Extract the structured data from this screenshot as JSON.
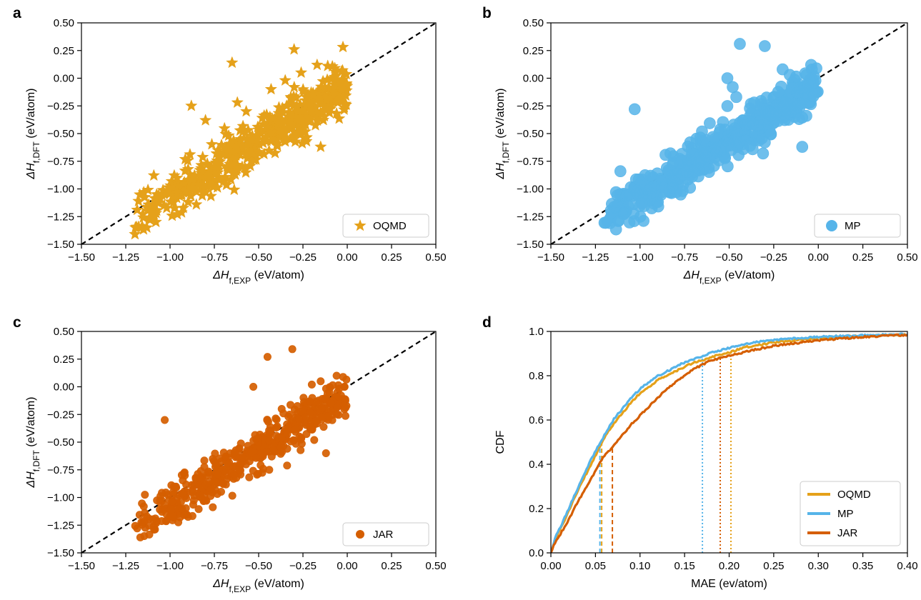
{
  "colors": {
    "OQMD": "#E5A11A",
    "MP": "#56B4E9",
    "JAR": "#D55E00"
  },
  "chart_data": [
    {
      "panel": "a",
      "type": "scatter",
      "marker": "star",
      "xlabel": {
        "pre": "ΔH",
        "sub": "f,EXP",
        "post": " (eV/atom)"
      },
      "ylabel": {
        "pre": "ΔH",
        "sub": "f,DFT",
        "post": " (eV/atom)"
      },
      "xlim": [
        -1.5,
        0.5
      ],
      "ylim": [
        -1.5,
        0.5
      ],
      "ticks": [
        "−1.50",
        "−1.25",
        "−1.00",
        "−0.75",
        "−0.50",
        "−0.25",
        "0.00",
        "0.25",
        "0.50"
      ],
      "tick_values": [
        -1.5,
        -1.25,
        -1.0,
        -0.75,
        -0.5,
        -0.25,
        0.0,
        0.25,
        0.5
      ],
      "parity_line": true,
      "legend": {
        "label": "OQMD",
        "position": "lower-right"
      },
      "series": [
        {
          "name": "OQMD",
          "color_key": "OQMD",
          "outliers": [
            [
              -0.65,
              0.14
            ],
            [
              -0.3,
              0.26
            ],
            [
              -1.09,
              -1.23
            ],
            [
              -0.15,
              -0.62
            ],
            [
              -0.57,
              -0.3
            ],
            [
              -0.8,
              -0.38
            ],
            [
              -0.88,
              -0.25
            ],
            [
              -0.43,
              -0.1
            ],
            [
              -0.35,
              -0.02
            ],
            [
              -0.17,
              0.12
            ],
            [
              -0.62,
              -0.22
            ],
            [
              -0.23,
              -0.57
            ],
            [
              -0.26,
              0.05
            ],
            [
              -0.19,
              -0.15
            ],
            [
              -0.11,
              0.11
            ],
            [
              -0.07,
              0.09
            ]
          ],
          "band": {
            "x_min": -1.2,
            "x_max": 0.0,
            "intercept": -0.07,
            "spread": 0.1,
            "count": 500
          }
        }
      ]
    },
    {
      "panel": "b",
      "type": "scatter",
      "marker": "circle",
      "xlabel": {
        "pre": "ΔH",
        "sub": "f,EXP",
        "post": " (eV/atom)"
      },
      "ylabel": {
        "pre": "ΔH",
        "sub": "f,DFT",
        "post": " (eV/atom)"
      },
      "xlim": [
        -1.5,
        0.5
      ],
      "ylim": [
        -1.5,
        0.5
      ],
      "ticks": [
        "−1.50",
        "−1.25",
        "−1.00",
        "−0.75",
        "−0.50",
        "−0.25",
        "0.00",
        "0.25",
        "0.50"
      ],
      "tick_values": [
        -1.5,
        -1.25,
        -1.0,
        -0.75,
        -0.5,
        -0.25,
        0.0,
        0.25,
        0.5
      ],
      "parity_line": true,
      "legend": {
        "label": "MP",
        "position": "lower-right"
      },
      "series": [
        {
          "name": "MP",
          "color_key": "MP",
          "outliers": [
            [
              -0.44,
              0.31
            ],
            [
              -0.3,
              0.29
            ],
            [
              -1.03,
              -0.28
            ],
            [
              -0.09,
              -0.62
            ],
            [
              -0.04,
              0.12
            ],
            [
              -0.51,
              0.0
            ],
            [
              -0.2,
              0.08
            ],
            [
              -0.36,
              -0.22
            ],
            [
              -0.46,
              -0.17
            ],
            [
              -1.09,
              -1.22
            ],
            [
              -0.3,
              -0.58
            ],
            [
              -0.16,
              0.03
            ],
            [
              -0.31,
              -0.68
            ],
            [
              -0.48,
              -0.08
            ],
            [
              -1.11,
              -0.84
            ]
          ],
          "band": {
            "x_min": -1.2,
            "x_max": 0.0,
            "intercept": -0.06,
            "spread": 0.1,
            "count": 500
          }
        }
      ]
    },
    {
      "panel": "c",
      "type": "scatter",
      "marker": "circle-small",
      "xlabel": {
        "pre": "ΔH",
        "sub": "f,EXP",
        "post": " (eV/atom)"
      },
      "ylabel": {
        "pre": "ΔH",
        "sub": "f,DFT",
        "post": " (eV/atom)"
      },
      "xlim": [
        -1.5,
        0.5
      ],
      "ylim": [
        -1.5,
        0.5
      ],
      "ticks": [
        "−1.50",
        "−1.25",
        "−1.00",
        "−0.75",
        "−0.50",
        "−0.25",
        "0.00",
        "0.25",
        "0.50"
      ],
      "tick_values": [
        -1.5,
        -1.25,
        -1.0,
        -0.75,
        -0.5,
        -0.25,
        0.0,
        0.25,
        0.5
      ],
      "parity_line": true,
      "legend": {
        "label": "JAR",
        "position": "lower-right"
      },
      "series": [
        {
          "name": "JAR",
          "color_key": "JAR",
          "outliers": [
            [
              -0.45,
              0.27
            ],
            [
              -0.31,
              0.34
            ],
            [
              -1.03,
              -0.3
            ],
            [
              -0.12,
              -0.6
            ],
            [
              -0.2,
              0.02
            ],
            [
              -0.53,
              0.0
            ],
            [
              -0.15,
              0.05
            ],
            [
              -1.09,
              -1.29
            ],
            [
              -0.44,
              -0.75
            ],
            [
              -0.37,
              -0.2
            ],
            [
              -0.27,
              -0.45
            ],
            [
              -0.06,
              0.1
            ]
          ],
          "band": {
            "x_min": -1.2,
            "x_max": 0.0,
            "intercept": -0.07,
            "spread": 0.1,
            "count": 500
          }
        }
      ]
    },
    {
      "panel": "d",
      "type": "line",
      "xlabel": {
        "pre": "MAE (ev/atom)",
        "sub": "",
        "post": ""
      },
      "ylabel": {
        "pre": "CDF",
        "sub": "",
        "post": ""
      },
      "xlim": [
        0.0,
        0.4
      ],
      "ylim": [
        0.0,
        1.0
      ],
      "xticks": [
        "0.00",
        "0.05",
        "0.10",
        "0.15",
        "0.20",
        "0.25",
        "0.30",
        "0.35",
        "0.40"
      ],
      "xtick_values": [
        0.0,
        0.05,
        0.1,
        0.15,
        0.2,
        0.25,
        0.3,
        0.35,
        0.4
      ],
      "yticks": [
        "0.0",
        "0.2",
        "0.4",
        "0.6",
        "0.8",
        "1.0"
      ],
      "ytick_values": [
        0.0,
        0.2,
        0.4,
        0.6,
        0.8,
        1.0
      ],
      "legend": {
        "position": "lower-right"
      },
      "series": [
        {
          "name": "OQMD",
          "color_key": "OQMD",
          "x": [
            0.0,
            0.005,
            0.01,
            0.02,
            0.03,
            0.04,
            0.05,
            0.06,
            0.07,
            0.08,
            0.09,
            0.1,
            0.11,
            0.12,
            0.13,
            0.14,
            0.15,
            0.16,
            0.17,
            0.18,
            0.19,
            0.2,
            0.22,
            0.25,
            0.3,
            0.35,
            0.4
          ],
          "y": [
            0.0,
            0.06,
            0.1,
            0.19,
            0.28,
            0.36,
            0.44,
            0.52,
            0.58,
            0.63,
            0.68,
            0.72,
            0.75,
            0.78,
            0.8,
            0.82,
            0.84,
            0.86,
            0.87,
            0.885,
            0.895,
            0.905,
            0.93,
            0.95,
            0.97,
            0.98,
            0.985
          ],
          "mean": 0.057,
          "percentile_95": 0.202
        },
        {
          "name": "MP",
          "color_key": "MP",
          "x": [
            0.0,
            0.005,
            0.01,
            0.02,
            0.03,
            0.04,
            0.05,
            0.06,
            0.07,
            0.08,
            0.09,
            0.1,
            0.11,
            0.12,
            0.13,
            0.14,
            0.15,
            0.16,
            0.17,
            0.18,
            0.19,
            0.2,
            0.22,
            0.25,
            0.3,
            0.35,
            0.4
          ],
          "y": [
            0.0,
            0.07,
            0.11,
            0.2,
            0.29,
            0.38,
            0.46,
            0.53,
            0.6,
            0.65,
            0.7,
            0.74,
            0.77,
            0.8,
            0.82,
            0.84,
            0.86,
            0.875,
            0.89,
            0.905,
            0.915,
            0.925,
            0.945,
            0.962,
            0.975,
            0.982,
            0.987
          ],
          "mean": 0.055,
          "percentile_95": 0.17
        },
        {
          "name": "JAR",
          "color_key": "JAR",
          "x": [
            0.0,
            0.005,
            0.01,
            0.02,
            0.03,
            0.04,
            0.05,
            0.06,
            0.07,
            0.08,
            0.09,
            0.1,
            0.11,
            0.12,
            0.13,
            0.14,
            0.15,
            0.16,
            0.17,
            0.18,
            0.19,
            0.2,
            0.22,
            0.25,
            0.3,
            0.35,
            0.4
          ],
          "y": [
            0.0,
            0.05,
            0.08,
            0.15,
            0.23,
            0.3,
            0.37,
            0.44,
            0.48,
            0.53,
            0.58,
            0.62,
            0.66,
            0.7,
            0.74,
            0.77,
            0.8,
            0.83,
            0.85,
            0.87,
            0.88,
            0.89,
            0.91,
            0.935,
            0.96,
            0.975,
            0.985
          ],
          "mean": 0.069,
          "percentile_95": 0.19
        }
      ]
    }
  ]
}
